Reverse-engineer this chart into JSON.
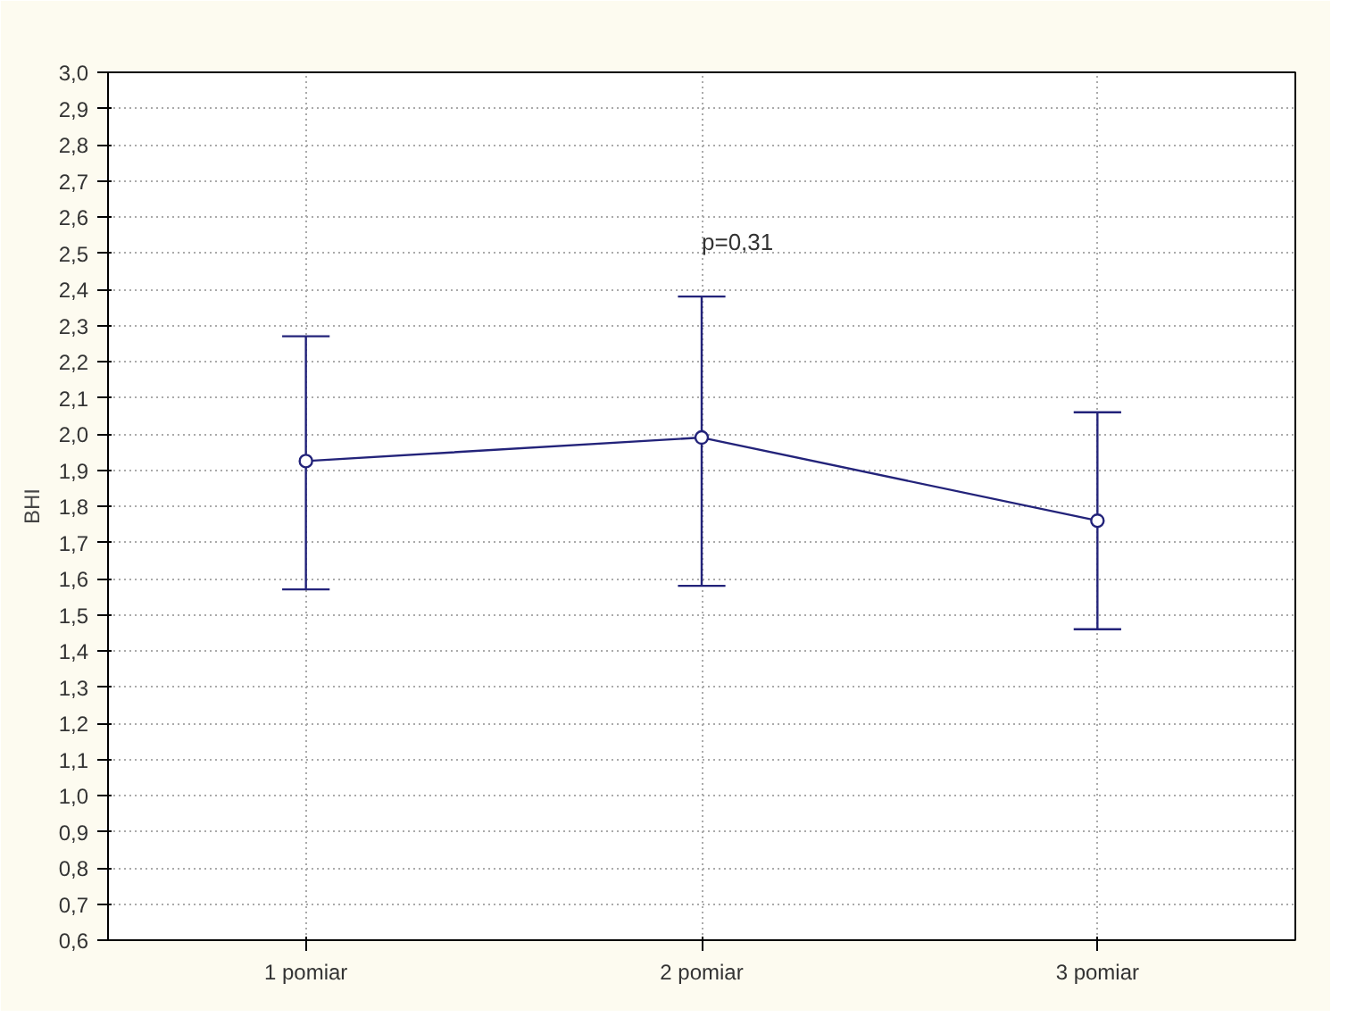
{
  "chart_data": {
    "type": "line",
    "ylabel": "BHI",
    "categories": [
      "1 pomiar",
      "2 pomiar",
      "3 pomiar"
    ],
    "series": [
      {
        "color": "#23237a",
        "values": [
          1.925,
          1.99,
          1.76
        ],
        "errors": [
          [
            1.57,
            2.27
          ],
          [
            1.58,
            2.38
          ],
          [
            1.46,
            2.06
          ]
        ]
      }
    ],
    "marker": "circle",
    "line_style": "solid",
    "grid": true,
    "ylim": [
      0.6,
      3.0
    ],
    "yticks": [
      {
        "value": 0.6,
        "label": "0,6"
      },
      {
        "value": 0.7,
        "label": "0,7"
      },
      {
        "value": 0.8,
        "label": "0,8"
      },
      {
        "value": 0.9,
        "label": "0,9"
      },
      {
        "value": 1.0,
        "label": "1,0"
      },
      {
        "value": 1.1,
        "label": "1,1"
      },
      {
        "value": 1.2,
        "label": "1,2"
      },
      {
        "value": 1.3,
        "label": "1,3"
      },
      {
        "value": 1.4,
        "label": "1,4"
      },
      {
        "value": 1.5,
        "label": "1,5"
      },
      {
        "value": 1.6,
        "label": "1,6"
      },
      {
        "value": 1.7,
        "label": "1,7"
      },
      {
        "value": 1.8,
        "label": "1,8"
      },
      {
        "value": 1.9,
        "label": "1,9"
      },
      {
        "value": 2.0,
        "label": "2,0"
      },
      {
        "value": 2.1,
        "label": "2,1"
      },
      {
        "value": 2.2,
        "label": "2,2"
      },
      {
        "value": 2.3,
        "label": "2,3"
      },
      {
        "value": 2.4,
        "label": "2,4"
      },
      {
        "value": 2.5,
        "label": "2,5"
      },
      {
        "value": 2.6,
        "label": "2,6"
      },
      {
        "value": 2.7,
        "label": "2,7"
      },
      {
        "value": 2.8,
        "label": "2,8"
      },
      {
        "value": 2.9,
        "label": "2,9"
      },
      {
        "value": 3.0,
        "label": "3,0"
      }
    ],
    "annotations": [
      "p=0,31"
    ]
  }
}
